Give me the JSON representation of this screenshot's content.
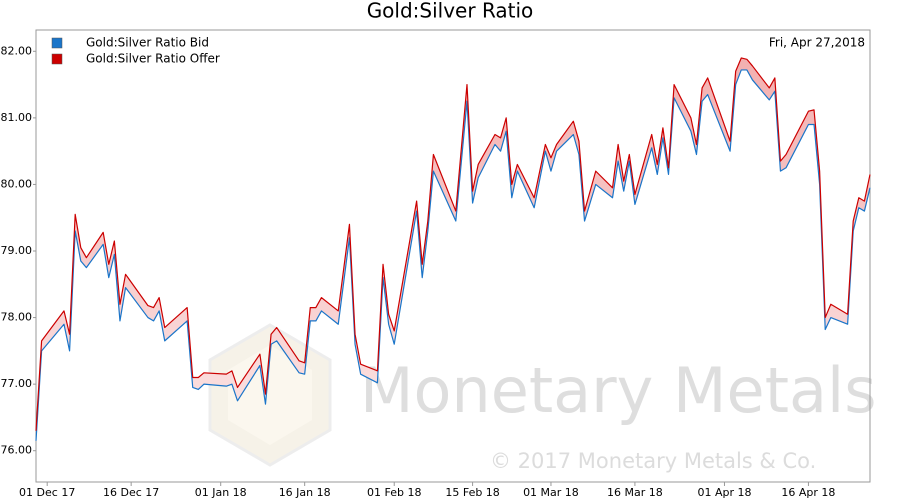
{
  "chart_data": {
    "type": "line",
    "title": "Gold:Silver Ratio",
    "annotation": "Fri, Apr 27,2018",
    "watermark": "Monetary Metals",
    "copyright": "© 2017 Monetary Metals & Co.",
    "legend": "top-left",
    "grid": false,
    "x": [
      "2017-11-29",
      "2017-11-30",
      "2017-12-04",
      "2017-12-05",
      "2017-12-06",
      "2017-12-07",
      "2017-12-08",
      "2017-12-11",
      "2017-12-12",
      "2017-12-13",
      "2017-12-14",
      "2017-12-15",
      "2017-12-19",
      "2017-12-20",
      "2017-12-21",
      "2017-12-22",
      "2017-12-26",
      "2017-12-27",
      "2017-12-28",
      "2017-12-29",
      "2018-01-02",
      "2018-01-03",
      "2018-01-04",
      "2018-01-08",
      "2018-01-09",
      "2018-01-10",
      "2018-01-11",
      "2018-01-15",
      "2018-01-16",
      "2018-01-17",
      "2018-01-18",
      "2018-01-19",
      "2018-01-22",
      "2018-01-24",
      "2018-01-25",
      "2018-01-26",
      "2018-01-29",
      "2018-01-30",
      "2018-01-31",
      "2018-02-01",
      "2018-02-05",
      "2018-02-06",
      "2018-02-07",
      "2018-02-08",
      "2018-02-12",
      "2018-02-14",
      "2018-02-15",
      "2018-02-16",
      "2018-02-19",
      "2018-02-20",
      "2018-02-21",
      "2018-02-22",
      "2018-02-23",
      "2018-02-26",
      "2018-02-28",
      "2018-03-01",
      "2018-03-02",
      "2018-03-05",
      "2018-03-06",
      "2018-03-07",
      "2018-03-09",
      "2018-03-12",
      "2018-03-13",
      "2018-03-14",
      "2018-03-15",
      "2018-03-16",
      "2018-03-19",
      "2018-03-20",
      "2018-03-21",
      "2018-03-22",
      "2018-03-23",
      "2018-03-26",
      "2018-03-27",
      "2018-03-28",
      "2018-03-29",
      "2018-04-02",
      "2018-04-03",
      "2018-04-04",
      "2018-04-05",
      "2018-04-06",
      "2018-04-09",
      "2018-04-10",
      "2018-04-11",
      "2018-04-12",
      "2018-04-16",
      "2018-04-17",
      "2018-04-18",
      "2018-04-19",
      "2018-04-20",
      "2018-04-23",
      "2018-04-24",
      "2018-04-25",
      "2018-04-26",
      "2018-04-27"
    ],
    "series": [
      {
        "name": "Gold:Silver Ratio Bid",
        "color": "#1a75c9",
        "values": [
          76.15,
          77.5,
          77.9,
          77.5,
          79.3,
          78.85,
          78.75,
          79.1,
          78.6,
          78.95,
          77.95,
          78.45,
          78.0,
          77.95,
          78.1,
          77.65,
          77.95,
          76.95,
          76.92,
          77.0,
          76.97,
          77.0,
          76.75,
          77.28,
          76.7,
          77.6,
          77.65,
          77.17,
          77.15,
          77.95,
          77.95,
          78.1,
          77.9,
          79.2,
          77.6,
          77.15,
          77.02,
          78.6,
          77.9,
          77.6,
          79.6,
          78.6,
          79.3,
          80.2,
          79.45,
          81.25,
          79.72,
          80.1,
          80.6,
          80.5,
          80.8,
          79.8,
          80.2,
          79.65,
          80.5,
          80.2,
          80.5,
          80.75,
          80.45,
          79.45,
          80.0,
          79.8,
          80.35,
          79.9,
          80.35,
          79.7,
          80.55,
          80.15,
          80.7,
          80.15,
          81.3,
          80.8,
          80.45,
          81.25,
          81.35,
          80.5,
          81.5,
          81.72,
          81.72,
          81.57,
          81.27,
          81.4,
          80.2,
          80.25,
          80.9,
          80.9,
          80.0,
          77.82,
          78.0,
          77.9,
          79.3,
          79.65,
          79.6,
          79.95
        ]
      },
      {
        "name": "Gold:Silver Ratio Offer",
        "color": "#cc0000",
        "values": [
          76.3,
          77.65,
          78.1,
          77.75,
          79.55,
          79.05,
          78.9,
          79.28,
          78.8,
          79.15,
          78.2,
          78.65,
          78.18,
          78.15,
          78.3,
          77.85,
          78.15,
          77.1,
          77.1,
          77.17,
          77.15,
          77.2,
          76.95,
          77.45,
          76.85,
          77.75,
          77.85,
          77.35,
          77.32,
          78.15,
          78.15,
          78.3,
          78.1,
          79.4,
          77.75,
          77.3,
          77.2,
          78.8,
          78.05,
          77.8,
          79.75,
          78.8,
          79.45,
          80.45,
          79.6,
          81.5,
          79.9,
          80.3,
          80.75,
          80.7,
          81.0,
          80.0,
          80.3,
          79.8,
          80.6,
          80.4,
          80.6,
          80.95,
          80.65,
          79.6,
          80.2,
          79.95,
          80.6,
          80.05,
          80.45,
          79.85,
          80.75,
          80.3,
          80.85,
          80.25,
          81.5,
          81.0,
          80.6,
          81.45,
          81.6,
          80.65,
          81.7,
          81.9,
          81.88,
          81.78,
          81.45,
          81.6,
          80.35,
          80.45,
          81.1,
          81.12,
          80.2,
          78.0,
          78.2,
          78.05,
          79.45,
          79.8,
          79.75,
          80.15
        ]
      }
    ],
    "xlim": [
      "2017-11-29",
      "2018-04-27"
    ],
    "xticks": [
      {
        "value": "2017-12-01",
        "label": "01 Dec 17"
      },
      {
        "value": "2017-12-16",
        "label": "16 Dec 17"
      },
      {
        "value": "2018-01-01",
        "label": "01 Jan 18"
      },
      {
        "value": "2018-01-16",
        "label": "16 Jan 18"
      },
      {
        "value": "2018-02-01",
        "label": "01 Feb 18"
      },
      {
        "value": "2018-02-15",
        "label": "15 Feb 18"
      },
      {
        "value": "2018-03-01",
        "label": "01 Mar 18"
      },
      {
        "value": "2018-03-16",
        "label": "16 Mar 18"
      },
      {
        "value": "2018-04-01",
        "label": "01 Apr 18"
      },
      {
        "value": "2018-04-16",
        "label": "16 Apr 18"
      }
    ],
    "ylim": [
      75.53,
      82.32
    ],
    "yticks": [
      {
        "value": 76,
        "label": "76.00"
      },
      {
        "value": 77,
        "label": "77.00"
      },
      {
        "value": 78,
        "label": "78.00"
      },
      {
        "value": 79,
        "label": "79.00"
      },
      {
        "value": 80,
        "label": "80.00"
      },
      {
        "value": 81,
        "label": "81.00"
      },
      {
        "value": 82,
        "label": "82.00"
      }
    ]
  }
}
